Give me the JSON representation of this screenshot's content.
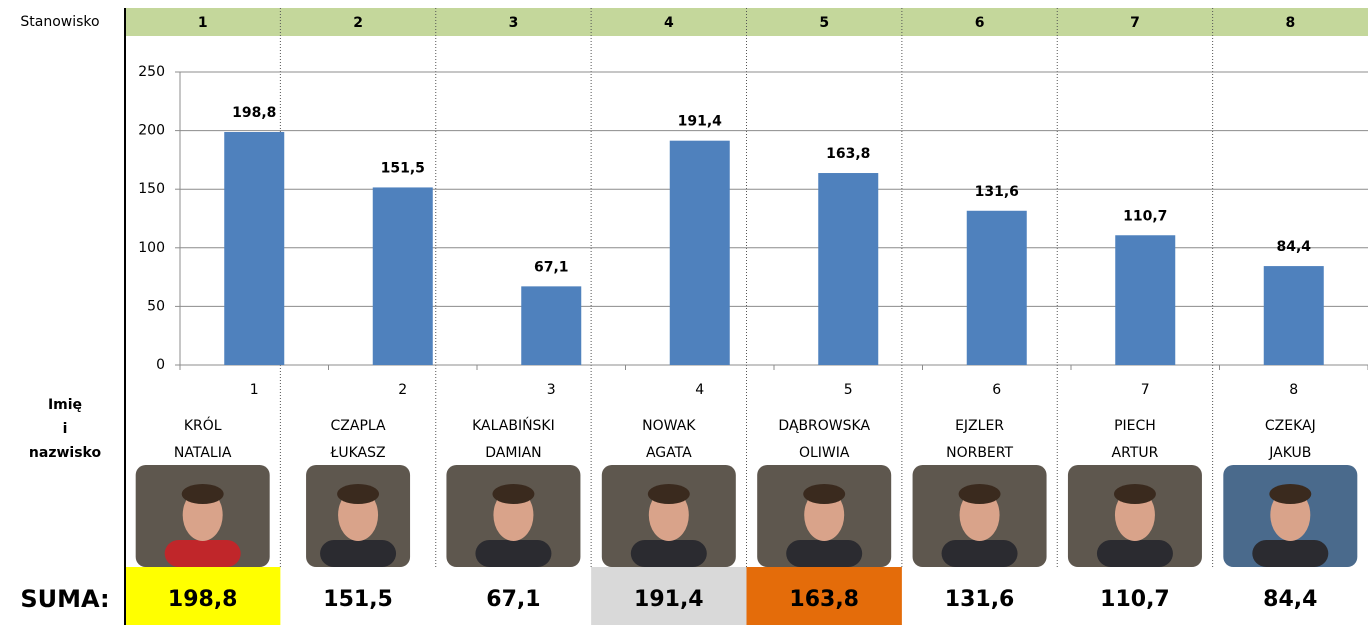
{
  "chart_data": {
    "type": "bar",
    "categories": [
      "1",
      "2",
      "3",
      "4",
      "5",
      "6",
      "7",
      "8"
    ],
    "values": [
      198.8,
      151.5,
      67.1,
      191.4,
      163.8,
      131.6,
      110.7,
      84.4
    ],
    "value_labels": [
      "198,8",
      "151,5",
      "67,1",
      "191,4",
      "163,8",
      "131,6",
      "110,7",
      "84,4"
    ],
    "color": "#4f81bd",
    "ylim": [
      0,
      250
    ],
    "yticks": [
      0,
      50,
      100,
      150,
      200,
      250
    ],
    "grid": true
  },
  "table": {
    "header": {
      "label": "Stanowisko",
      "cells": [
        "1",
        "2",
        "3",
        "4",
        "5",
        "6",
        "7",
        "8"
      ],
      "color": "#c4d79b"
    },
    "name_label": [
      "Imię",
      "i",
      "nazwisko"
    ],
    "names": [
      [
        "KRÓL",
        "NATALIA"
      ],
      [
        "CZAPLA",
        "ŁUKASZ"
      ],
      [
        "KALABIŃSKI",
        "DAMIAN"
      ],
      [
        "NOWAK",
        "AGATA"
      ],
      [
        "DĄBROWSKA",
        "OLIWIA"
      ],
      [
        "EJZLER",
        "NORBERT"
      ],
      [
        "PIECH",
        "ARTUR"
      ],
      [
        "CZEKAJ",
        "JAKUB"
      ]
    ],
    "sum": {
      "label": "SUMA:",
      "cells": [
        "198,8",
        "151,5",
        "67,1",
        "191,4",
        "163,8",
        "131,6",
        "110,7",
        "84,4"
      ],
      "highlights": [
        "#ffff00",
        null,
        null,
        "#d9d9d9",
        "#e46c0a",
        null,
        null,
        null
      ]
    }
  }
}
